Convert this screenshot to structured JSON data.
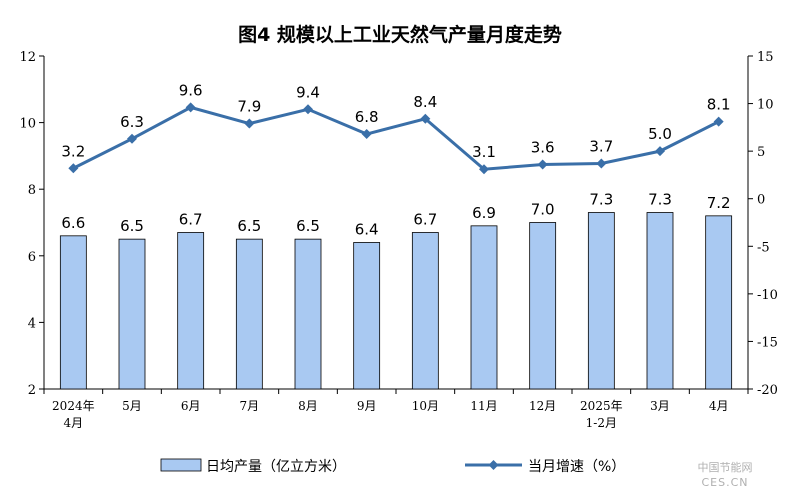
{
  "chart_data": {
    "type": "bar+line",
    "title": "图4 规模以上工业天然气产量月度走势",
    "categories": [
      [
        "2024年",
        "4月"
      ],
      [
        "5月"
      ],
      [
        "6月"
      ],
      [
        "7月"
      ],
      [
        "8月"
      ],
      [
        "9月"
      ],
      [
        "10月"
      ],
      [
        "11月"
      ],
      [
        "12月"
      ],
      [
        "2025年",
        "1-2月"
      ],
      [
        "3月"
      ],
      [
        "4月"
      ]
    ],
    "series": [
      {
        "name": "日均产量（亿立方米）",
        "type": "bar",
        "axis": "left",
        "color": "#a9c9f2",
        "values": [
          6.6,
          6.5,
          6.7,
          6.5,
          6.5,
          6.4,
          6.7,
          6.9,
          7.0,
          7.3,
          7.3,
          7.2
        ],
        "labels": [
          "6.6",
          "6.5",
          "6.7",
          "6.5",
          "6.5",
          "6.4",
          "6.7",
          "6.9",
          "7.0",
          "7.3",
          "7.3",
          "7.2"
        ]
      },
      {
        "name": "当月增速（%）",
        "type": "line",
        "axis": "right",
        "color": "#3a6fa8",
        "values": [
          3.2,
          6.3,
          9.6,
          7.9,
          9.4,
          6.8,
          8.4,
          3.1,
          3.6,
          3.7,
          5.0,
          8.1
        ],
        "labels": [
          "3.2",
          "6.3",
          "9.6",
          "7.9",
          "9.4",
          "6.8",
          "8.4",
          "3.1",
          "3.6",
          "3.7",
          "5.0",
          "8.1"
        ]
      }
    ],
    "y_left": {
      "lim": [
        2,
        12
      ],
      "ticks": [
        "2",
        "4",
        "6",
        "8",
        "10",
        "12"
      ]
    },
    "y_right": {
      "lim": [
        -20,
        15
      ],
      "ticks": [
        "-20",
        "-15",
        "-10",
        "-5",
        "0",
        "5",
        "10",
        "15"
      ]
    },
    "legend": {
      "position": "bottom"
    },
    "grid": false
  },
  "watermark": {
    "line1": "中国节能网",
    "line2": "CES.CN"
  }
}
